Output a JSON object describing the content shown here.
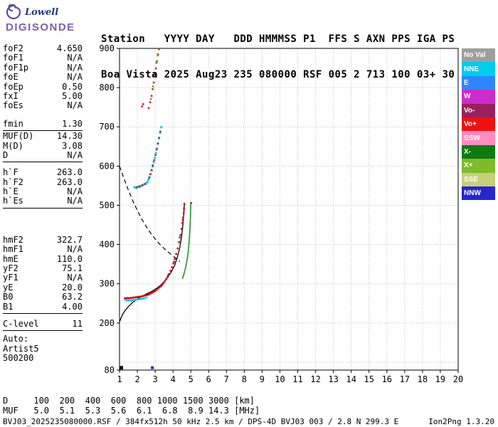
{
  "logo": {
    "title": "Lowell",
    "subtitle": "DIGISONDE"
  },
  "header": {
    "line1": "Station   YYYY DAY   DDD HMMMSS P1  FFS S AXN PPS IGA PS",
    "line2": "Boa Vista 2025 Aug23 235 080000 RSF 005 2 713 100 03+ 30"
  },
  "params": {
    "groups": [
      {
        "rows": [
          [
            "foF2",
            "4.650"
          ],
          [
            "foF1",
            "N/A"
          ],
          [
            "foF1p",
            "N/A"
          ],
          [
            "foE",
            "N/A"
          ],
          [
            "foEp",
            "0.50"
          ],
          [
            "fxI",
            "5.00"
          ],
          [
            "foEs",
            "N/A"
          ]
        ],
        "separator": false
      },
      {
        "rows": [
          [
            "fmin",
            "1.30"
          ]
        ],
        "separator": true
      },
      {
        "rows": [
          [
            "MUF(D)",
            "14.30"
          ],
          [
            "M(D)",
            "3.08"
          ],
          [
            "D",
            "N/A"
          ]
        ],
        "separator": true
      },
      {
        "rows": [
          [
            "h`F",
            "263.0"
          ],
          [
            "h`F2",
            "263.0"
          ],
          [
            "h`E",
            "N/A"
          ],
          [
            "h`Es",
            "N/A"
          ]
        ],
        "separator": true
      },
      {
        "rows": [
          [
            "hmF2",
            "322.7"
          ],
          [
            "hmF1",
            "N/A"
          ],
          [
            "hmE",
            "110.0"
          ],
          [
            "yF2",
            "75.1"
          ],
          [
            "yF1",
            "N/A"
          ],
          [
            "yE",
            "20.0"
          ],
          [
            "B0",
            "63.2"
          ],
          [
            "B1",
            "4.00"
          ]
        ],
        "separator": true
      },
      {
        "rows": [
          [
            "C-level",
            "11"
          ]
        ],
        "separator": true
      },
      {
        "rows": [
          [
            "Auto:",
            ""
          ],
          [
            "Artist5",
            ""
          ],
          [
            "500200",
            ""
          ]
        ],
        "separator": false
      }
    ]
  },
  "legend": {
    "items": [
      {
        "label": "No Val",
        "color": "#9e9e9e"
      },
      {
        "label": "NNE",
        "color": "#00ccee"
      },
      {
        "label": "E",
        "color": "#2e86ff"
      },
      {
        "label": "W",
        "color": "#cc2ccc"
      },
      {
        "label": "Vo-",
        "color": "#99205e"
      },
      {
        "label": "Vo+",
        "color": "#ee1111"
      },
      {
        "label": "SSW",
        "color": "#ff8cc0"
      },
      {
        "label": "X-",
        "color": "#0f7a0f"
      },
      {
        "label": "X+",
        "color": "#7fbb2a"
      },
      {
        "label": "SSE",
        "color": "#c8cf7a"
      },
      {
        "label": "NNW",
        "color": "#2626cf"
      }
    ]
  },
  "chart_data": {
    "type": "scatter",
    "title": "Ionogram virtual height vs frequency",
    "xlabel": "[MHz]",
    "ylabel": "[km]",
    "x_axis": {
      "min": 1,
      "max": 20,
      "ticks": [
        1,
        2,
        3,
        4,
        5,
        6,
        7,
        8,
        9,
        10,
        11,
        12,
        13,
        14,
        15,
        16,
        17,
        18,
        19,
        20
      ],
      "grid": [
        2,
        3,
        4,
        5,
        6,
        7,
        8,
        9,
        10,
        11,
        12,
        13,
        14,
        15,
        16,
        17,
        18,
        19
      ]
    },
    "y_axis": {
      "min": 80,
      "max": 900,
      "labels": [
        900,
        800,
        700,
        600,
        500,
        400,
        300,
        200,
        80
      ],
      "grid": [
        100,
        200,
        300,
        400,
        500,
        600,
        700,
        800
      ]
    },
    "series": [
      {
        "name": "transmission-curve",
        "type": "line",
        "color": "#000000",
        "width": 1.2,
        "dash": "6 4",
        "points": [
          [
            1.0,
            600
          ],
          [
            1.25,
            568
          ],
          [
            1.5,
            538
          ],
          [
            1.75,
            511
          ],
          [
            2.0,
            487
          ],
          [
            2.25,
            465
          ],
          [
            2.5,
            446
          ],
          [
            2.75,
            429
          ],
          [
            3.0,
            414
          ],
          [
            3.25,
            401
          ],
          [
            3.5,
            390
          ],
          [
            3.75,
            380
          ],
          [
            4.0,
            371
          ],
          [
            4.2,
            364
          ],
          [
            4.38,
            357
          ]
        ]
      },
      {
        "name": "true-height-profile",
        "type": "line",
        "color": "#000000",
        "width": 1.3,
        "points": [
          [
            1.0,
            203
          ],
          [
            1.15,
            220
          ],
          [
            1.3,
            231
          ],
          [
            1.5,
            242
          ],
          [
            1.7,
            251
          ],
          [
            1.9,
            258
          ],
          [
            2.1,
            264
          ],
          [
            2.3,
            269
          ],
          [
            2.5,
            274
          ],
          [
            2.7,
            278
          ],
          [
            2.9,
            283
          ],
          [
            3.1,
            289
          ],
          [
            3.3,
            296
          ],
          [
            3.5,
            305
          ],
          [
            3.7,
            316
          ],
          [
            3.9,
            330
          ],
          [
            4.1,
            348
          ],
          [
            4.25,
            368
          ],
          [
            4.38,
            392
          ],
          [
            4.48,
            420
          ],
          [
            4.56,
            452
          ],
          [
            4.61,
            480
          ],
          [
            4.64,
            505
          ]
        ]
      },
      {
        "name": "o-trace",
        "type": "scatter",
        "color": "#dd0011",
        "size": 2.6,
        "points": [
          [
            1.3,
            263
          ],
          [
            1.38,
            263
          ],
          [
            1.46,
            264
          ],
          [
            1.54,
            263
          ],
          [
            1.62,
            264
          ],
          [
            1.7,
            264
          ],
          [
            1.78,
            265
          ],
          [
            1.86,
            265
          ],
          [
            1.94,
            266
          ],
          [
            2.02,
            266
          ],
          [
            2.1,
            267
          ],
          [
            2.18,
            267
          ],
          [
            2.26,
            268
          ],
          [
            2.34,
            269
          ],
          [
            2.42,
            270
          ],
          [
            2.5,
            271
          ],
          [
            2.58,
            272
          ],
          [
            2.66,
            273
          ],
          [
            2.74,
            275
          ],
          [
            2.82,
            277
          ],
          [
            2.9,
            279
          ],
          [
            2.98,
            281
          ],
          [
            3.06,
            284
          ],
          [
            3.14,
            287
          ],
          [
            3.22,
            290
          ],
          [
            3.3,
            293
          ],
          [
            3.38,
            297
          ],
          [
            3.46,
            301
          ],
          [
            3.54,
            306
          ],
          [
            3.62,
            312
          ],
          [
            3.7,
            318
          ],
          [
            3.78,
            325
          ],
          [
            3.86,
            333
          ],
          [
            3.94,
            342
          ],
          [
            4.02,
            352
          ],
          [
            4.1,
            363
          ],
          [
            4.18,
            376
          ],
          [
            4.26,
            390
          ],
          [
            4.34,
            406
          ],
          [
            4.42,
            424
          ],
          [
            4.48,
            440
          ],
          [
            4.53,
            455
          ],
          [
            4.57,
            468
          ],
          [
            4.6,
            480
          ],
          [
            4.62,
            492
          ],
          [
            4.64,
            504
          ],
          [
            5.02,
            506
          ]
        ]
      },
      {
        "name": "nne-leading-edge",
        "type": "scatter",
        "color": "#00ccee",
        "size": 2.6,
        "points": [
          [
            1.32,
            259
          ],
          [
            1.4,
            258
          ],
          [
            1.48,
            258
          ],
          [
            1.56,
            257
          ],
          [
            1.64,
            258
          ],
          [
            1.72,
            258
          ],
          [
            1.8,
            259
          ],
          [
            1.88,
            259
          ],
          [
            1.96,
            260
          ],
          [
            2.04,
            260
          ],
          [
            2.12,
            261
          ],
          [
            2.2,
            261
          ],
          [
            2.3,
            262
          ],
          [
            2.4,
            263
          ],
          [
            2.52,
            265
          ]
        ]
      },
      {
        "name": "second-hop-nne",
        "type": "scatter",
        "color": "#00ccee",
        "size": 3,
        "points": [
          [
            1.84,
            546
          ],
          [
            1.92,
            545
          ],
          [
            2.0,
            547
          ],
          [
            2.08,
            548
          ],
          [
            2.16,
            549
          ],
          [
            2.24,
            550
          ],
          [
            2.32,
            552
          ],
          [
            2.4,
            554
          ],
          [
            2.48,
            556
          ],
          [
            2.56,
            559
          ],
          [
            2.62,
            565
          ],
          [
            2.68,
            572
          ],
          [
            2.74,
            580
          ],
          [
            2.8,
            589
          ],
          [
            2.86,
            599
          ],
          [
            2.92,
            610
          ],
          [
            2.98,
            621
          ],
          [
            3.04,
            633
          ],
          [
            3.1,
            645
          ],
          [
            3.16,
            658
          ],
          [
            3.22,
            671
          ],
          [
            3.28,
            685
          ],
          [
            3.34,
            699
          ]
        ]
      },
      {
        "name": "second-hop-o",
        "type": "scatter",
        "color": "#cc2233",
        "size": 2.6,
        "points": [
          [
            1.96,
            545
          ],
          [
            2.12,
            547
          ],
          [
            2.28,
            551
          ],
          [
            2.44,
            554
          ],
          [
            2.66,
            570
          ],
          [
            2.73,
            579
          ],
          [
            2.8,
            590
          ],
          [
            2.87,
            602
          ],
          [
            2.94,
            615
          ],
          [
            3.01,
            628
          ],
          [
            3.08,
            642
          ],
          [
            3.15,
            657
          ],
          [
            3.22,
            672
          ],
          [
            3.29,
            688
          ],
          [
            2.26,
            752
          ],
          [
            2.33,
            758
          ]
        ]
      },
      {
        "name": "upper-scatter-o",
        "type": "scatter",
        "color": "#dd2222",
        "size": 2.6,
        "points": [
          [
            2.64,
            748
          ],
          [
            2.72,
            763
          ],
          [
            2.8,
            779
          ],
          [
            2.86,
            796
          ],
          [
            2.92,
            813
          ],
          [
            2.98,
            831
          ],
          [
            3.04,
            849
          ],
          [
            3.1,
            867
          ],
          [
            3.16,
            885
          ],
          [
            3.21,
            898
          ]
        ]
      },
      {
        "name": "upper-scatter-x",
        "type": "scatter",
        "color": "#55aa33",
        "size": 2.6,
        "points": [
          [
            2.76,
            771
          ],
          [
            2.88,
            803
          ],
          [
            2.97,
            836
          ],
          [
            3.07,
            863
          ],
          [
            3.14,
            882
          ]
        ]
      },
      {
        "name": "vo-minus-points",
        "type": "scatter",
        "color": "#99205e",
        "size": 2.6,
        "points": [
          [
            3.34,
            295
          ],
          [
            3.74,
            322
          ],
          [
            4.06,
            356
          ],
          [
            4.38,
            418
          ],
          [
            4.55,
            462
          ]
        ]
      },
      {
        "name": "x-trace",
        "type": "line",
        "color": "#3d9a3d",
        "width": 1.8,
        "points": [
          [
            4.52,
            312
          ],
          [
            4.58,
            320
          ],
          [
            4.64,
            329
          ],
          [
            4.7,
            340
          ],
          [
            4.76,
            353
          ],
          [
            4.82,
            369
          ],
          [
            4.87,
            389
          ],
          [
            4.91,
            412
          ],
          [
            4.95,
            441
          ],
          [
            4.98,
            470
          ],
          [
            5.0,
            505
          ]
        ]
      },
      {
        "name": "baseline-mark",
        "type": "scatter",
        "color": "#111111",
        "size": 5,
        "points": [
          [
            1.1,
            86
          ]
        ]
      },
      {
        "name": "baseline-mark-nnw",
        "type": "scatter",
        "color": "#2626cf",
        "size": 4,
        "points": [
          [
            2.84,
            86
          ]
        ]
      }
    ]
  },
  "dmuf_table": {
    "rows": [
      {
        "label": "D",
        "values": [
          "100",
          "200",
          "400",
          "600",
          "800",
          "1000",
          "1500",
          "3000"
        ],
        "unit": "[km]"
      },
      {
        "label": "MUF",
        "values": [
          "5.0",
          "5.1",
          "5.3",
          "5.6",
          "6.1",
          "6.8",
          "8.9",
          "14.3"
        ],
        "unit": "[MHz]"
      }
    ]
  },
  "status_bar": {
    "left": "BVJ03_2025235080000.RSF / 384fx512h 50 kHz 2.5 km / DPS-4D BVJ03 003 / 2.8 N 299.3 E",
    "right": "Ion2Png 1.3.20"
  }
}
